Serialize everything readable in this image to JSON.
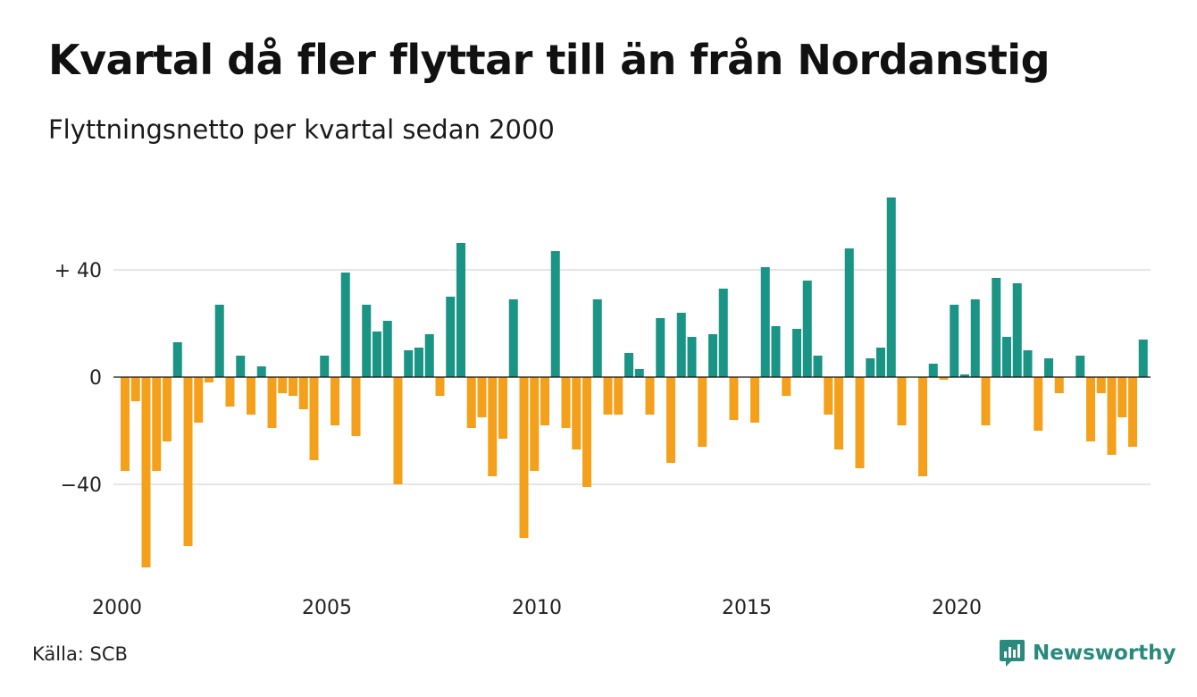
{
  "header": {
    "title": "Kvartal då fler flyttar till än från Nordanstig",
    "subtitle": "Flyttningsnetto per kvartal sedan 2000"
  },
  "footer": {
    "source": "Källa: SCB",
    "brand": "Newsworthy"
  },
  "colors": {
    "positive": "#1a9485",
    "negative": "#f5a01a",
    "grid": "#dddddd",
    "brand": "#2a8a7e"
  },
  "chart_data": {
    "type": "bar",
    "ylim": [
      -75,
      70
    ],
    "yticks": [
      {
        "value": 40,
        "label": "+ 40"
      },
      {
        "value": 0,
        "label": "0"
      },
      {
        "value": -40,
        "label": "−40"
      }
    ],
    "xticks": [
      "2000",
      "2005",
      "2010",
      "2015",
      "2020"
    ],
    "grid": true,
    "start_year": 2000,
    "values": [
      -35,
      -9,
      -71,
      -35,
      -24,
      13,
      -63,
      -17,
      -2,
      27,
      -11,
      8,
      -14,
      4,
      -19,
      -6,
      -7,
      -12,
      -31,
      8,
      -18,
      39,
      -22,
      27,
      17,
      21,
      -40,
      10,
      11,
      16,
      -7,
      30,
      50,
      -19,
      -15,
      -37,
      -23,
      29,
      -60,
      -35,
      -18,
      47,
      -19,
      -27,
      -41,
      29,
      -14,
      -14,
      9,
      3,
      -14,
      22,
      -32,
      24,
      15,
      -26,
      16,
      33,
      -16,
      0,
      -17,
      41,
      19,
      -7,
      18,
      36,
      8,
      -14,
      -27,
      48,
      -34,
      7,
      11,
      67,
      -18,
      0,
      -37,
      5,
      -1,
      27,
      1,
      29,
      -18,
      37,
      15,
      35,
      10,
      -20,
      7,
      -6,
      0,
      8,
      -24,
      -6,
      -29,
      -15,
      -26,
      14
    ]
  }
}
